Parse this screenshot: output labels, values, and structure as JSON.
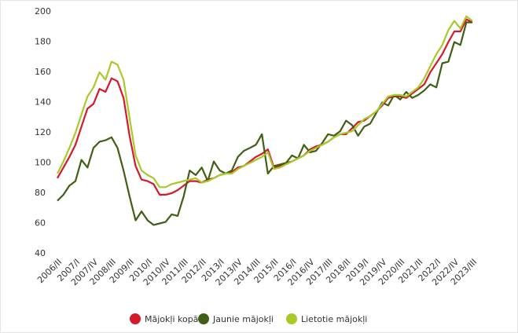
{
  "chart_data": {
    "type": "line",
    "categories": [
      "2006/II",
      null,
      null,
      "2007/I",
      null,
      null,
      "2007/IV",
      null,
      null,
      "2008/III",
      null,
      null,
      "2009/II",
      null,
      null,
      "2010/I",
      null,
      null,
      "2010/IV",
      null,
      null,
      "2011/III",
      null,
      null,
      "2012/II",
      null,
      null,
      "2013/I",
      null,
      null,
      "2013/IV",
      null,
      null,
      "2014/III",
      null,
      null,
      "2015/II",
      null,
      null,
      "2016/I",
      null,
      null,
      "2016/IV",
      null,
      null,
      "2017/III",
      null,
      null,
      "2018/II",
      null,
      null,
      "2019/I",
      null,
      null,
      "2019/IV",
      null,
      null,
      "2020/III",
      null,
      null,
      "2021/II",
      null,
      null,
      "2022/I",
      null,
      null,
      "2022/IV",
      null,
      null,
      "2023/III"
    ],
    "series": [
      {
        "name": "Mājokļi kopā",
        "color": "#d7182a",
        "values": [
          90,
          97,
          104,
          112,
          124,
          136,
          139,
          149,
          147,
          156,
          154,
          143,
          118,
          98,
          89,
          88,
          86,
          79,
          79,
          80,
          82,
          85,
          88,
          88,
          87,
          89,
          90,
          92,
          93,
          94,
          97,
          98,
          101,
          104,
          106,
          109,
          97,
          98,
          100,
          101,
          103,
          105,
          109,
          111,
          112,
          114,
          117,
          119,
          119,
          123,
          127,
          128,
          131,
          134,
          138,
          143,
          144,
          144,
          143,
          146,
          149,
          152,
          160,
          166,
          172,
          180,
          187,
          187,
          195,
          193
        ]
      },
      {
        "name": "Jaunie mājokļi",
        "color": "#3f5e16",
        "values": [
          75,
          79,
          85,
          88,
          102,
          97,
          110,
          114,
          115,
          117,
          110,
          95,
          78,
          62,
          68,
          62,
          59,
          60,
          61,
          66,
          65,
          78,
          95,
          92,
          97,
          88,
          101,
          95,
          93,
          95,
          104,
          108,
          110,
          112,
          119,
          93,
          98,
          99,
          100,
          105,
          103,
          112,
          107,
          108,
          113,
          119,
          118,
          121,
          128,
          125,
          118,
          124,
          126,
          133,
          140,
          138,
          145,
          142,
          147,
          143,
          145,
          148,
          152,
          150,
          166,
          167,
          180,
          178,
          193,
          193
        ]
      },
      {
        "name": "Lietotie mājokļi",
        "color": "#a8c92a",
        "values": [
          93,
          101,
          110,
          120,
          132,
          144,
          150,
          160,
          155,
          167,
          165,
          155,
          130,
          105,
          95,
          92,
          90,
          84,
          84,
          86,
          87,
          88,
          89,
          90,
          87,
          88,
          90,
          92,
          93,
          93,
          96,
          98,
          100,
          102,
          104,
          107,
          96,
          97,
          99,
          101,
          103,
          105,
          108,
          110,
          112,
          114,
          117,
          119,
          120,
          121,
          125,
          129,
          131,
          134,
          139,
          144,
          145,
          145,
          144,
          147,
          150,
          156,
          164,
          172,
          178,
          188,
          194,
          189,
          197,
          194
        ]
      }
    ],
    "ylim": [
      40,
      200
    ],
    "yticks": [
      40,
      60,
      80,
      100,
      120,
      140,
      160,
      180,
      200
    ],
    "grid": false,
    "legend": "bottom"
  }
}
